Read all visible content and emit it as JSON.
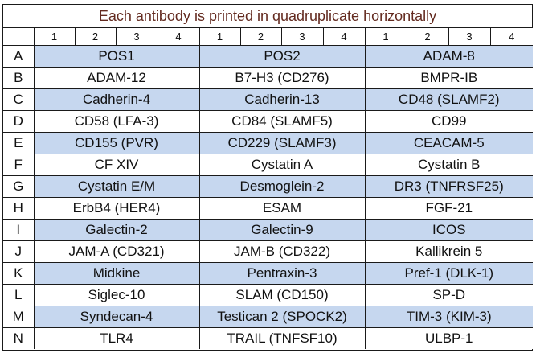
{
  "title": "Each antibody is printed in quadruplicate horizontally",
  "column_numbers": [
    "1",
    "2",
    "3",
    "4",
    "1",
    "2",
    "3",
    "4",
    "1",
    "2",
    "3",
    "4"
  ],
  "shaded_row_color": "#c6d7ef",
  "title_color": "#632a1f",
  "rows": [
    {
      "letter": "A",
      "cells": [
        "POS1",
        "POS2",
        "ADAM-8"
      ],
      "shaded": true
    },
    {
      "letter": "B",
      "cells": [
        "ADAM-12",
        "B7-H3 (CD276)",
        "BMPR-IB"
      ],
      "shaded": false
    },
    {
      "letter": "C",
      "cells": [
        "Cadherin-4",
        "Cadherin-13",
        "CD48 (SLAMF2)"
      ],
      "shaded": true
    },
    {
      "letter": "D",
      "cells": [
        "CD58 (LFA-3)",
        "CD84 (SLAMF5)",
        "CD99"
      ],
      "shaded": false
    },
    {
      "letter": "E",
      "cells": [
        "CD155 (PVR)",
        "CD229 (SLAMF3)",
        "CEACAM-5"
      ],
      "shaded": true
    },
    {
      "letter": "F",
      "cells": [
        "CF XIV",
        "Cystatin A",
        "Cystatin B"
      ],
      "shaded": false
    },
    {
      "letter": "G",
      "cells": [
        "Cystatin E/M",
        "Desmoglein-2",
        "DR3 (TNFRSF25)"
      ],
      "shaded": true
    },
    {
      "letter": "H",
      "cells": [
        "ErbB4 (HER4)",
        "ESAM",
        "FGF-21"
      ],
      "shaded": false
    },
    {
      "letter": "I",
      "cells": [
        "Galectin-2",
        "Galectin-9",
        "ICOS"
      ],
      "shaded": true
    },
    {
      "letter": "J",
      "cells": [
        "JAM-A (CD321)",
        "JAM-B (CD322)",
        "Kallikrein 5"
      ],
      "shaded": false
    },
    {
      "letter": "K",
      "cells": [
        "Midkine",
        "Pentraxin-3",
        "Pref-1 (DLK-1)"
      ],
      "shaded": true
    },
    {
      "letter": "L",
      "cells": [
        "Siglec-10",
        "SLAM (CD150)",
        "SP-D"
      ],
      "shaded": false
    },
    {
      "letter": "M",
      "cells": [
        "Syndecan-4",
        "Testican 2 (SPOCK2)",
        "TIM-3 (KIM-3)"
      ],
      "shaded": true
    },
    {
      "letter": "N",
      "cells": [
        "TLR4",
        "TRAIL (TNFSF10)",
        "ULBP-1"
      ],
      "shaded": false
    }
  ]
}
